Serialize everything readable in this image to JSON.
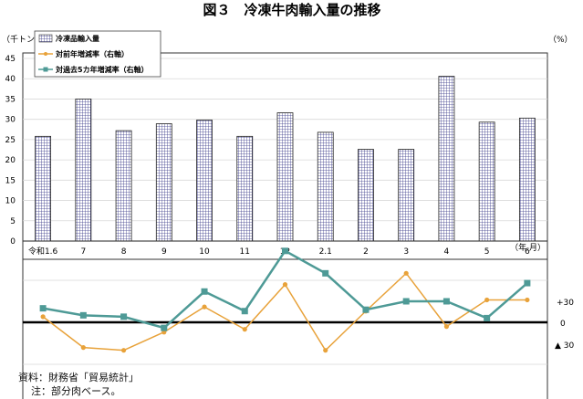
{
  "title": "図３　冷凍牛肉輸入量の推移",
  "units": {
    "left": "（千トン）",
    "right": "（%）",
    "xunit": "（年.月）"
  },
  "legend": [
    {
      "label": "冷凍品輸入量"
    },
    {
      "label": "対前年増減率（右軸）",
      "color": "#E8A23A"
    },
    {
      "label": "対過去5カ年増減率（右軸）",
      "color": "#4E9A96"
    }
  ],
  "lower_axis_labels": {
    "plus": "+30",
    "zero": "0",
    "minus": "▲ 30"
  },
  "notes": {
    "line1": "資料：財務省「貿易統計」",
    "line2": "注：部分肉ベース。"
  },
  "chart_data": {
    "type": "bar+line",
    "categories": [
      "令和1.6",
      "7",
      "8",
      "9",
      "10",
      "11",
      "12",
      "2.1",
      "2",
      "3",
      "4",
      "5",
      "6"
    ],
    "left_axis": {
      "ylim": [
        0,
        45
      ],
      "ticks": [
        0,
        5,
        10,
        15,
        20,
        25,
        30,
        35,
        40,
        45
      ]
    },
    "right_axis": {
      "ylim": [
        -45,
        45
      ],
      "tick_labels": [
        "+30",
        "0",
        "▲ 30"
      ]
    },
    "series": [
      {
        "name": "冷凍品輸入量",
        "kind": "bar",
        "axis": "left",
        "values": [
          25.8,
          35.0,
          27.2,
          28.9,
          29.8,
          25.8,
          31.6,
          26.8,
          22.6,
          22.6,
          40.6,
          29.3,
          30.3
        ]
      },
      {
        "name": "対前年増減率（右軸）",
        "kind": "line",
        "axis": "right",
        "color": "#E8A23A",
        "values": [
          4,
          -18,
          -20,
          -7,
          11,
          -5,
          27,
          -20,
          8,
          35,
          -3,
          16,
          16
        ]
      },
      {
        "name": "対過去5カ年増減率（右軸）",
        "kind": "line",
        "axis": "right",
        "color": "#4E9A96",
        "values": [
          10,
          5,
          4,
          -4,
          22,
          8,
          51,
          35,
          9,
          15,
          15,
          3,
          28
        ]
      }
    ]
  }
}
